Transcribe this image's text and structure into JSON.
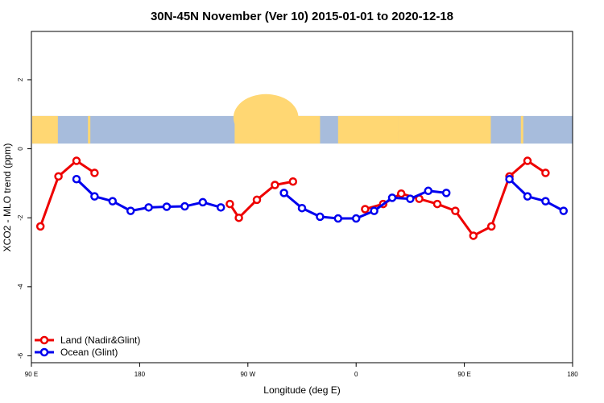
{
  "chart_data": {
    "type": "line",
    "title": "30N-45N November (Ver 10)   2015-01-01 to 2020-12-18",
    "xlabel": "Longitude (deg E)",
    "ylabel": "XCO2 - MLO trend (ppm)",
    "xlim": [
      90,
      540
    ],
    "ylim": [
      -6.2,
      3.4
    ],
    "x_ticks": [
      {
        "value": 90,
        "label": "90 E"
      },
      {
        "value": 180,
        "label": "180"
      },
      {
        "value": 270,
        "label": "90 W"
      },
      {
        "value": 360,
        "label": "0"
      },
      {
        "value": 450,
        "label": "90 E"
      },
      {
        "value": 540,
        "label": "180"
      }
    ],
    "y_ticks": [
      {
        "value": 2,
        "label": "2"
      },
      {
        "value": 0,
        "label": "0"
      },
      {
        "value": -2,
        "label": "-2"
      },
      {
        "value": -4,
        "label": "-4"
      },
      {
        "value": -6,
        "label": "-6"
      }
    ],
    "map_strip": {
      "y_range": [
        0.15,
        0.95
      ],
      "lon_range": [
        90,
        540
      ],
      "land_color": "#FFD773",
      "ocean_color": "#A7BCDC"
    },
    "series": [
      {
        "name": "Land (Nadir&Glint)",
        "color": "#EE0000",
        "segments": [
          [
            [
              97.5,
              -2.25
            ],
            [
              112.5,
              -0.8
            ],
            [
              127.5,
              -0.35
            ],
            [
              142.5,
              -0.7
            ]
          ],
          [
            [
              255,
              -1.6
            ],
            [
              262.5,
              -2.0
            ],
            [
              277.5,
              -1.48
            ],
            [
              292.5,
              -1.05
            ],
            [
              307.5,
              -0.95
            ]
          ],
          [
            [
              367.5,
              -1.75
            ],
            [
              382.5,
              -1.6
            ],
            [
              397.5,
              -1.3
            ],
            [
              412.5,
              -1.45
            ],
            [
              427.5,
              -1.6
            ],
            [
              442.5,
              -1.8
            ],
            [
              457.5,
              -2.52
            ],
            [
              472.5,
              -2.25
            ],
            [
              487.5,
              -0.8
            ],
            [
              502.5,
              -0.35
            ],
            [
              517.5,
              -0.7
            ]
          ]
        ]
      },
      {
        "name": "Ocean (Glint)",
        "color": "#0000EE",
        "segments": [
          [
            [
              127.5,
              -0.88
            ],
            [
              142.5,
              -1.38
            ],
            [
              157.5,
              -1.52
            ],
            [
              172.5,
              -1.8
            ],
            [
              187.5,
              -1.7
            ],
            [
              202.5,
              -1.68
            ],
            [
              217.5,
              -1.67
            ],
            [
              232.5,
              -1.55
            ],
            [
              247.5,
              -1.7
            ]
          ],
          [
            [
              300,
              -1.28
            ],
            [
              315,
              -1.72
            ],
            [
              330,
              -1.97
            ],
            [
              345,
              -2.02
            ],
            [
              360,
              -2.02
            ],
            [
              375,
              -1.8
            ],
            [
              390,
              -1.42
            ],
            [
              405,
              -1.45
            ],
            [
              420,
              -1.22
            ],
            [
              435,
              -1.28
            ]
          ],
          [
            [
              487.5,
              -0.88
            ],
            [
              502.5,
              -1.38
            ],
            [
              517.5,
              -1.52
            ],
            [
              532.5,
              -1.8
            ]
          ]
        ]
      }
    ]
  }
}
